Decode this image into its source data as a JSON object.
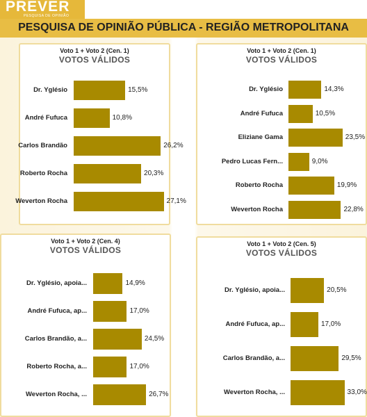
{
  "header": {
    "brand_name": "PREVER",
    "brand_tagline": "PESQUISA DE OPINIÃO",
    "title": "PESQUISA DE OPINIÃO PÚBLICA - REGIÃO METROPOLITANA"
  },
  "colors": {
    "bar": "#a88a00",
    "title_band": "#e8bd44",
    "panel_border": "#f0dc9e"
  },
  "chart_data": [
    {
      "type": "bar",
      "orientation": "horizontal",
      "subtitle": "Voto 1 + Voto 2 (Cen. 1)",
      "title": "VOTOS VÁLIDOS",
      "categories": [
        "Dr. Yglésio",
        "André Fufuca",
        "Carlos Brandão",
        "Roberto Rocha",
        "Weverton Rocha"
      ],
      "values": [
        15.5,
        10.8,
        26.2,
        20.3,
        27.1
      ],
      "value_labels": [
        "15,5%",
        "10,8%",
        "26,2%",
        "20,3%",
        "27,1%"
      ]
    },
    {
      "type": "bar",
      "orientation": "horizontal",
      "subtitle": "Voto 1 + Voto 2 (Cen. 1)",
      "title": "VOTOS VÁLIDOS",
      "categories": [
        "Dr. Yglésio",
        "André Fufuca",
        "Eliziane Gama",
        "Pedro Lucas Fern...",
        "Roberto Rocha",
        "Weverton Rocha"
      ],
      "values": [
        14.3,
        10.5,
        23.5,
        9.0,
        19.9,
        22.8
      ],
      "value_labels": [
        "14,3%",
        "10,5%",
        "23,5%",
        "9,0%",
        "19,9%",
        "22,8%"
      ]
    },
    {
      "type": "bar",
      "orientation": "horizontal",
      "subtitle": "Voto 1 + Voto 2 (Cen. 4)",
      "title": "VOTOS VÁLIDOS",
      "categories": [
        "Dr. Yglésio, apoia...",
        "André Fufuca, ap...",
        "Carlos Brandão, a...",
        "Roberto Rocha, a...",
        "Weverton Rocha, ..."
      ],
      "values": [
        14.9,
        17.0,
        24.5,
        17.0,
        26.7
      ],
      "value_labels": [
        "14,9%",
        "17,0%",
        "24,5%",
        "17,0%",
        "26,7%"
      ]
    },
    {
      "type": "bar",
      "orientation": "horizontal",
      "subtitle": "Voto 1 + Voto 2 (Cen. 5)",
      "title": "VOTOS VÁLIDOS",
      "categories": [
        "Dr. Yglésio, apoia...",
        "André Fufuca, ap...",
        "Carlos Brandão, a...",
        "Weverton Rocha, ..."
      ],
      "values": [
        20.5,
        17.0,
        29.5,
        33.0
      ],
      "value_labels": [
        "20,5%",
        "17,0%",
        "29,5%",
        "33,0%"
      ]
    }
  ]
}
